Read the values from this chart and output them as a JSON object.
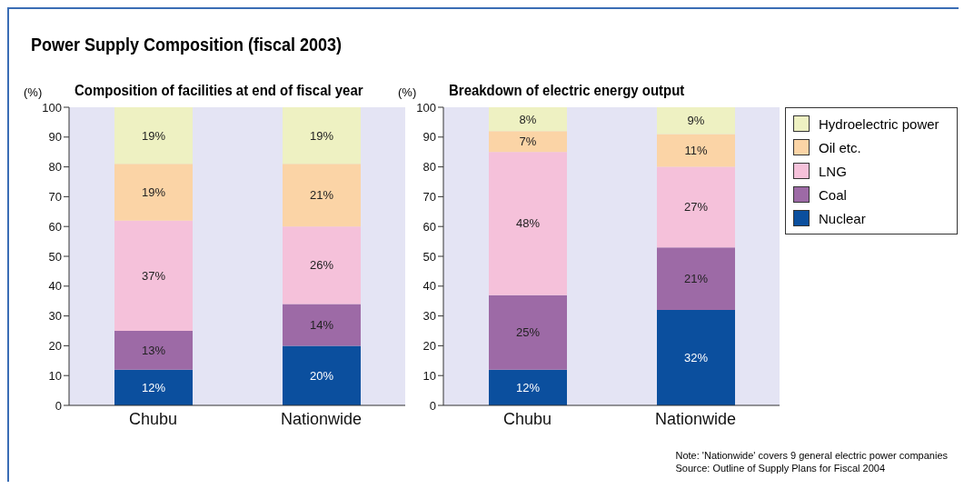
{
  "chart_data": [
    {
      "type": "bar",
      "title": "Power Supply Composition (fiscal 2003)",
      "subtitle": "Composition of facilities at end of fiscal year",
      "ylabel": "(%)",
      "categories": [
        "Chubu",
        "Nationwide"
      ],
      "stacked": true,
      "ylim": [
        0,
        100
      ],
      "yticks": [
        0,
        10,
        20,
        30,
        40,
        50,
        60,
        70,
        80,
        90,
        100
      ],
      "legend": false,
      "series": [
        {
          "color": "#0b4f9e",
          "values": [
            12,
            20
          ],
          "value_labels": [
            "12%",
            "20%"
          ]
        },
        {
          "color": "#9d6aa6",
          "values": [
            13,
            14
          ],
          "value_labels": [
            "13%",
            "14%"
          ]
        },
        {
          "color": "#f5c1da",
          "values": [
            37,
            26
          ],
          "value_labels": [
            "37%",
            "26%"
          ]
        },
        {
          "color": "#fbd4a6",
          "values": [
            19,
            21
          ],
          "value_labels": [
            "19%",
            "21%"
          ]
        },
        {
          "color": "#eef1c2",
          "values": [
            19,
            19
          ],
          "value_labels": [
            "19%",
            "19%"
          ]
        }
      ]
    },
    {
      "type": "bar",
      "title": "Breakdown of electric energy output",
      "ylabel": "(%)",
      "categories": [
        "Chubu",
        "Nationwide"
      ],
      "stacked": true,
      "ylim": [
        0,
        100
      ],
      "yticks": [
        0,
        10,
        20,
        30,
        40,
        50,
        60,
        70,
        80,
        90,
        100
      ],
      "legend": "right",
      "annotations": [
        "Note: 'Nationwide' covers 9 general electric power companies",
        "Source: Outline of Supply Plans for Fiscal 2004"
      ],
      "series": [
        {
          "name": "Nuclear",
          "color": "#0b4f9e",
          "values": [
            12,
            32
          ],
          "value_labels": [
            "12%",
            "32%"
          ]
        },
        {
          "name": "Coal",
          "color": "#9d6aa6",
          "values": [
            25,
            21
          ],
          "value_labels": [
            "25%",
            "21%"
          ]
        },
        {
          "name": "LNG",
          "color": "#f5c1da",
          "values": [
            48,
            27
          ],
          "value_labels": [
            "48%",
            "27%"
          ]
        },
        {
          "name": "Oil etc.",
          "color": "#fbd4a6",
          "values": [
            7,
            11
          ],
          "value_labels": [
            "7%",
            "11%"
          ]
        },
        {
          "name": "Hydroelectric power",
          "color": "#eef1c2",
          "values": [
            8,
            9
          ],
          "value_labels": [
            "8%",
            "9%"
          ]
        }
      ]
    }
  ]
}
